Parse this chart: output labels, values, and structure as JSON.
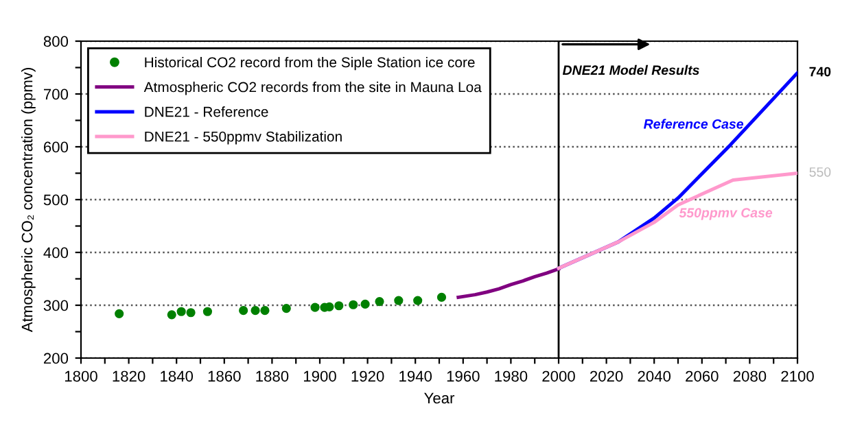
{
  "chart_data": {
    "type": "line",
    "xlabel": "Year",
    "ylabel": "Atmospheric CO₂ concentration (ppmv)",
    "xlim": [
      1800,
      2100
    ],
    "ylim": [
      200,
      800
    ],
    "xticks": [
      1800,
      {
        "value": 1810,
        "label": null
      },
      1820,
      {
        "value": 1830,
        "label": null
      },
      1840,
      {
        "value": 1850,
        "label": null
      },
      1860,
      {
        "value": 1870,
        "label": null
      },
      1880,
      {
        "value": 1890,
        "label": null
      },
      1900,
      {
        "value": 1910,
        "label": null
      },
      1920,
      {
        "value": 1930,
        "label": null
      },
      1940,
      {
        "value": 1950,
        "label": null
      },
      1960,
      {
        "value": 1970,
        "label": null
      },
      1980,
      {
        "value": 1990,
        "label": null
      },
      2000,
      {
        "value": 2010,
        "label": null
      },
      2020,
      {
        "value": 2030,
        "label": null
      },
      2040,
      {
        "value": 2050,
        "label": null
      },
      2060,
      {
        "value": 2070,
        "label": null
      },
      2080,
      {
        "value": 2090,
        "label": null
      },
      2100
    ],
    "yticks": [
      200,
      {
        "value": 250,
        "label": null
      },
      300,
      {
        "value": 350,
        "label": null
      },
      400,
      {
        "value": 450,
        "label": null
      },
      500,
      {
        "value": 550,
        "label": null
      },
      600,
      {
        "value": 650,
        "label": null
      },
      700,
      {
        "value": 750,
        "label": null
      },
      800
    ],
    "grid": "y",
    "legend": "top left",
    "series": [
      {
        "name": "Historical CO2 record from the Siple Station ice core",
        "type": "scatter",
        "marker": "circle",
        "color": "#008000",
        "x": [
          1816,
          1838,
          1842,
          1846,
          1853,
          1868,
          1873,
          1877,
          1886,
          1898,
          1902,
          1904,
          1908,
          1914,
          1919,
          1925,
          1933,
          1941,
          1951
        ],
        "values": [
          284,
          282,
          288,
          286,
          288,
          290,
          290,
          290,
          294,
          296,
          296,
          297,
          299,
          301,
          302,
          307,
          309,
          309,
          315
        ]
      },
      {
        "name": "Atmospheric CO2 records from the site in Mauna Loa",
        "color": "#800080",
        "x": [
          1958,
          1965,
          1970,
          1975,
          1980,
          1985,
          1990,
          1995,
          2000
        ],
        "values": [
          315,
          320,
          325,
          331,
          339,
          346,
          354,
          361,
          369
        ]
      },
      {
        "name": "DNE21 - Reference",
        "color": "#0000ff",
        "x": [
          2000,
          2025,
          2040,
          2050,
          2072,
          2100
        ],
        "values": [
          370,
          420,
          465,
          503,
          604,
          740
        ]
      },
      {
        "name": "DNE21 - 550ppmv Stabilization",
        "color": "#ff99cc",
        "x": [
          2000,
          2025,
          2040,
          2050,
          2073,
          2100
        ],
        "values": [
          370,
          420,
          457,
          490,
          537,
          550
        ]
      }
    ],
    "ref_lines": [
      {
        "axis": "x",
        "value": 2000,
        "color": "#000000"
      }
    ],
    "annotations": [
      "DNE21 Model Results",
      "Reference Case",
      "550ppmv Case",
      {
        "text": "740",
        "x": 2100,
        "y": 740
      },
      {
        "text": "550",
        "x": 2100,
        "y": 550
      }
    ]
  }
}
